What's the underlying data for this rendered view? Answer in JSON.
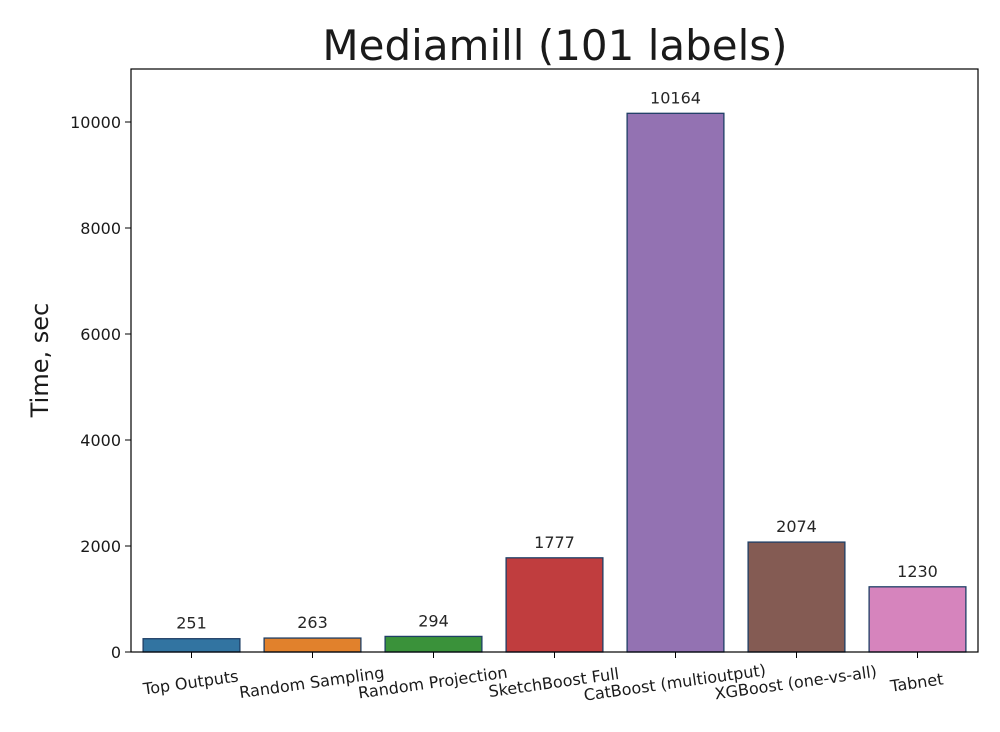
{
  "chart_data": {
    "type": "bar",
    "title": "Mediamill (101 labels)",
    "xlabel": "",
    "ylabel": "Time, sec",
    "ylim": [
      0,
      11000
    ],
    "yticks": [
      0,
      2000,
      4000,
      6000,
      8000,
      10000
    ],
    "grid": false,
    "categories": [
      "Top Outputs",
      "Random Sampling",
      "Random Projection",
      "SketchBoost Full",
      "CatBoost (multioutput)",
      "XGBoost (one-vs-all)",
      "Tabnet"
    ],
    "values": [
      251,
      263,
      294,
      1777,
      10164,
      2074,
      1230
    ],
    "data_labels": [
      "251",
      "263",
      "294",
      "1777",
      "10164",
      "2074",
      "1230"
    ],
    "colors": [
      "#3274a1",
      "#e1812c",
      "#3a923a",
      "#c03d3e",
      "#9372b2",
      "#845b53",
      "#d684bd"
    ],
    "edge_color": "#1f3f66"
  }
}
